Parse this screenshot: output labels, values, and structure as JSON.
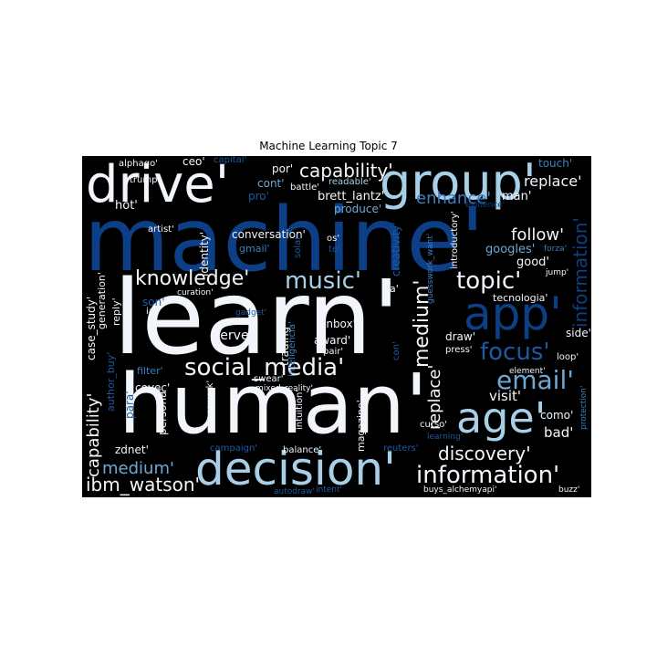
{
  "title": "Machine Learning Topic 7",
  "palette": {
    "white": "#f2f6fb",
    "light_blue": "#a9cfe6",
    "mid_blue": "#6ea9d6",
    "blue": "#3d7fc2",
    "dark_blue": "#1d5aa3",
    "navy": "#0c3f86",
    "deep_navy": "#0a2f66",
    "background": "#000000"
  },
  "words": [
    "machine'",
    "learn'",
    "human'",
    "drive'",
    "group'",
    "decision'",
    "app'",
    "age'",
    "social_media'",
    "knowledge'",
    "music'",
    "topic'",
    "focus'",
    "email'",
    "information'",
    "discovery'",
    "ibm_watson'",
    "medium'",
    "replace'",
    "capability'",
    "enhance'",
    "follow'",
    "googles'",
    "good'",
    "hot'",
    "man'",
    "brett_lantz'",
    "produce'",
    "conversation'",
    "energy'",
    "spam'",
    "caltech'",
    "sport'",
    "identity'",
    "creativity'",
    "visit'",
    "bad'",
    "como'",
    "draw'",
    "touch'",
    "ceo'",
    "capital'",
    "alphago'",
    "trump'",
    "por'",
    "cont'",
    "pro'",
    "battle'",
    "readable'",
    "evidence'",
    "forza'",
    "jump'",
    "artist'",
    "gmail'",
    "os'",
    "te'",
    "solar'",
    "guesswork_want'",
    "introductory'",
    "generation'",
    "case_study'",
    "reply'",
    "son'",
    "ia'",
    "curation'",
    "gadget'",
    "la'",
    "inbox'",
    "trading'",
    "serve'",
    "award'",
    "pair'",
    "con'",
    "inteligencia'",
    "tecnologia'",
    "side'",
    "loop'",
    "press'",
    "element'",
    "protection'",
    "filter'",
    "author_buy'",
    "para'",
    "covec'",
    "persona'",
    "swear'",
    "mixed_reality'",
    "intuition'",
    "magazine'",
    "curso'",
    "learning'",
    "zdnet'",
    "guesswork'",
    "campaign'",
    "balance'",
    "reuters'",
    "buys_alchemyapi'",
    "autodraw'",
    "intent'",
    "buzz'"
  ]
}
